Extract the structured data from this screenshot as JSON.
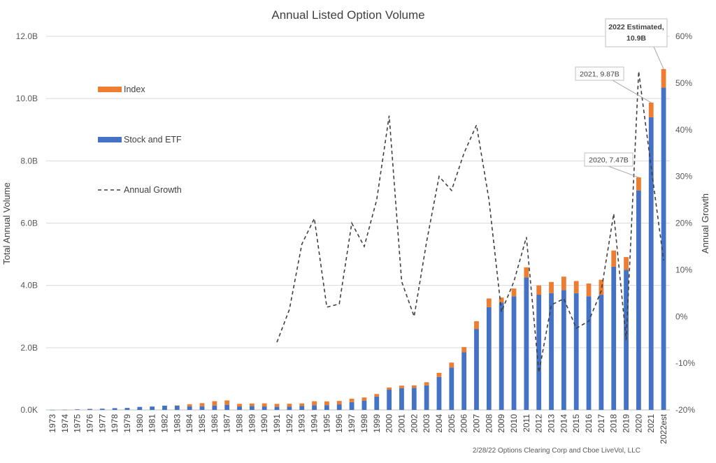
{
  "chart_data": {
    "type": "bar",
    "title": "Annual Listed Option Volume",
    "ylabel": "Total Annual Volume",
    "y2label": "Annual Growth",
    "ylim": [
      0,
      12
    ],
    "y2lim": [
      -20,
      60
    ],
    "y_ticks": [
      "0.0K",
      "2.0B",
      "4.0B",
      "6.0B",
      "8.0B",
      "10.0B",
      "12.0B"
    ],
    "y2_ticks": [
      "-20%",
      "-10%",
      "0%",
      "10%",
      "20%",
      "30%",
      "40%",
      "50%",
      "60%"
    ],
    "grid": true,
    "legend_position": "left",
    "categories": [
      "1973",
      "1974",
      "1975",
      "1976",
      "1977",
      "1978",
      "1979",
      "1980",
      "1981",
      "1982",
      "1983",
      "1984",
      "1985",
      "1986",
      "1987",
      "1988",
      "1989",
      "1990",
      "1991",
      "1992",
      "1993",
      "1994",
      "1995",
      "1996",
      "1997",
      "1998",
      "1999",
      "2000",
      "2001",
      "2002",
      "2003",
      "2004",
      "2005",
      "2006",
      "2007",
      "2008",
      "2009",
      "2010",
      "2011",
      "2012",
      "2013",
      "2014",
      "2015",
      "2016",
      "2017",
      "2018",
      "2019",
      "2020",
      "2021",
      "2022est"
    ],
    "series": [
      {
        "name": "Stock and ETF",
        "kind": "stacked-bar",
        "color": "#4472C4",
        "values": [
          0.001,
          0.006,
          0.018,
          0.032,
          0.039,
          0.057,
          0.064,
          0.096,
          0.109,
          0.137,
          0.135,
          0.114,
          0.118,
          0.141,
          0.165,
          0.111,
          0.127,
          0.111,
          0.105,
          0.109,
          0.131,
          0.149,
          0.154,
          0.178,
          0.25,
          0.3,
          0.43,
          0.65,
          0.7,
          0.71,
          0.79,
          1.06,
          1.36,
          1.85,
          2.6,
          3.3,
          3.45,
          3.65,
          4.25,
          3.7,
          3.75,
          3.85,
          3.75,
          3.65,
          3.7,
          4.6,
          4.5,
          7.05,
          9.4,
          10.35
        ]
      },
      {
        "name": "Index",
        "kind": "stacked-bar",
        "color": "#ED7D31",
        "values": [
          0,
          0,
          0,
          0,
          0,
          0,
          0,
          0,
          0,
          0,
          0.01,
          0.07,
          0.1,
          0.14,
          0.14,
          0.085,
          0.08,
          0.1,
          0.09,
          0.09,
          0.08,
          0.13,
          0.12,
          0.11,
          0.11,
          0.1,
          0.08,
          0.07,
          0.08,
          0.08,
          0.1,
          0.13,
          0.16,
          0.17,
          0.25,
          0.28,
          0.16,
          0.25,
          0.33,
          0.3,
          0.36,
          0.43,
          0.39,
          0.41,
          0.48,
          0.52,
          0.41,
          0.42,
          0.47,
          0.6
        ]
      },
      {
        "name": "Annual Growth",
        "kind": "line",
        "color": "#404040",
        "dash": "5,4",
        "values": [
          null,
          null,
          null,
          null,
          null,
          null,
          null,
          null,
          null,
          null,
          null,
          null,
          null,
          null,
          null,
          null,
          null,
          null,
          -5.5,
          1.5,
          15.5,
          21,
          2,
          2.7,
          20,
          15,
          25,
          43,
          7.5,
          0,
          16,
          30,
          27,
          35,
          41,
          25,
          1,
          7.5,
          17,
          -12,
          2.5,
          3.8,
          -2.5,
          -1,
          5.5,
          22,
          -5,
          52.5,
          32,
          12
        ]
      }
    ],
    "annotations": [
      {
        "label": "2020, 7.47B",
        "x": "2020",
        "value": 7.47
      },
      {
        "label": "2021, 9.87B",
        "x": "2021",
        "value": 9.87
      },
      {
        "label": "2022 Estimated,",
        "label2": "10.9B",
        "x": "2022est",
        "value": 10.95,
        "bold": true
      }
    ],
    "legend": [
      {
        "name": "Index",
        "marker": "swatch",
        "color": "#ED7D31"
      },
      {
        "name": "Stock and ETF",
        "marker": "swatch",
        "color": "#4472C4"
      },
      {
        "name": "Annual Growth",
        "marker": "dash",
        "color": "#404040"
      }
    ],
    "source_note": "2/28/22 Options Clearing Corp and Cboe LiveVol, LLC"
  }
}
